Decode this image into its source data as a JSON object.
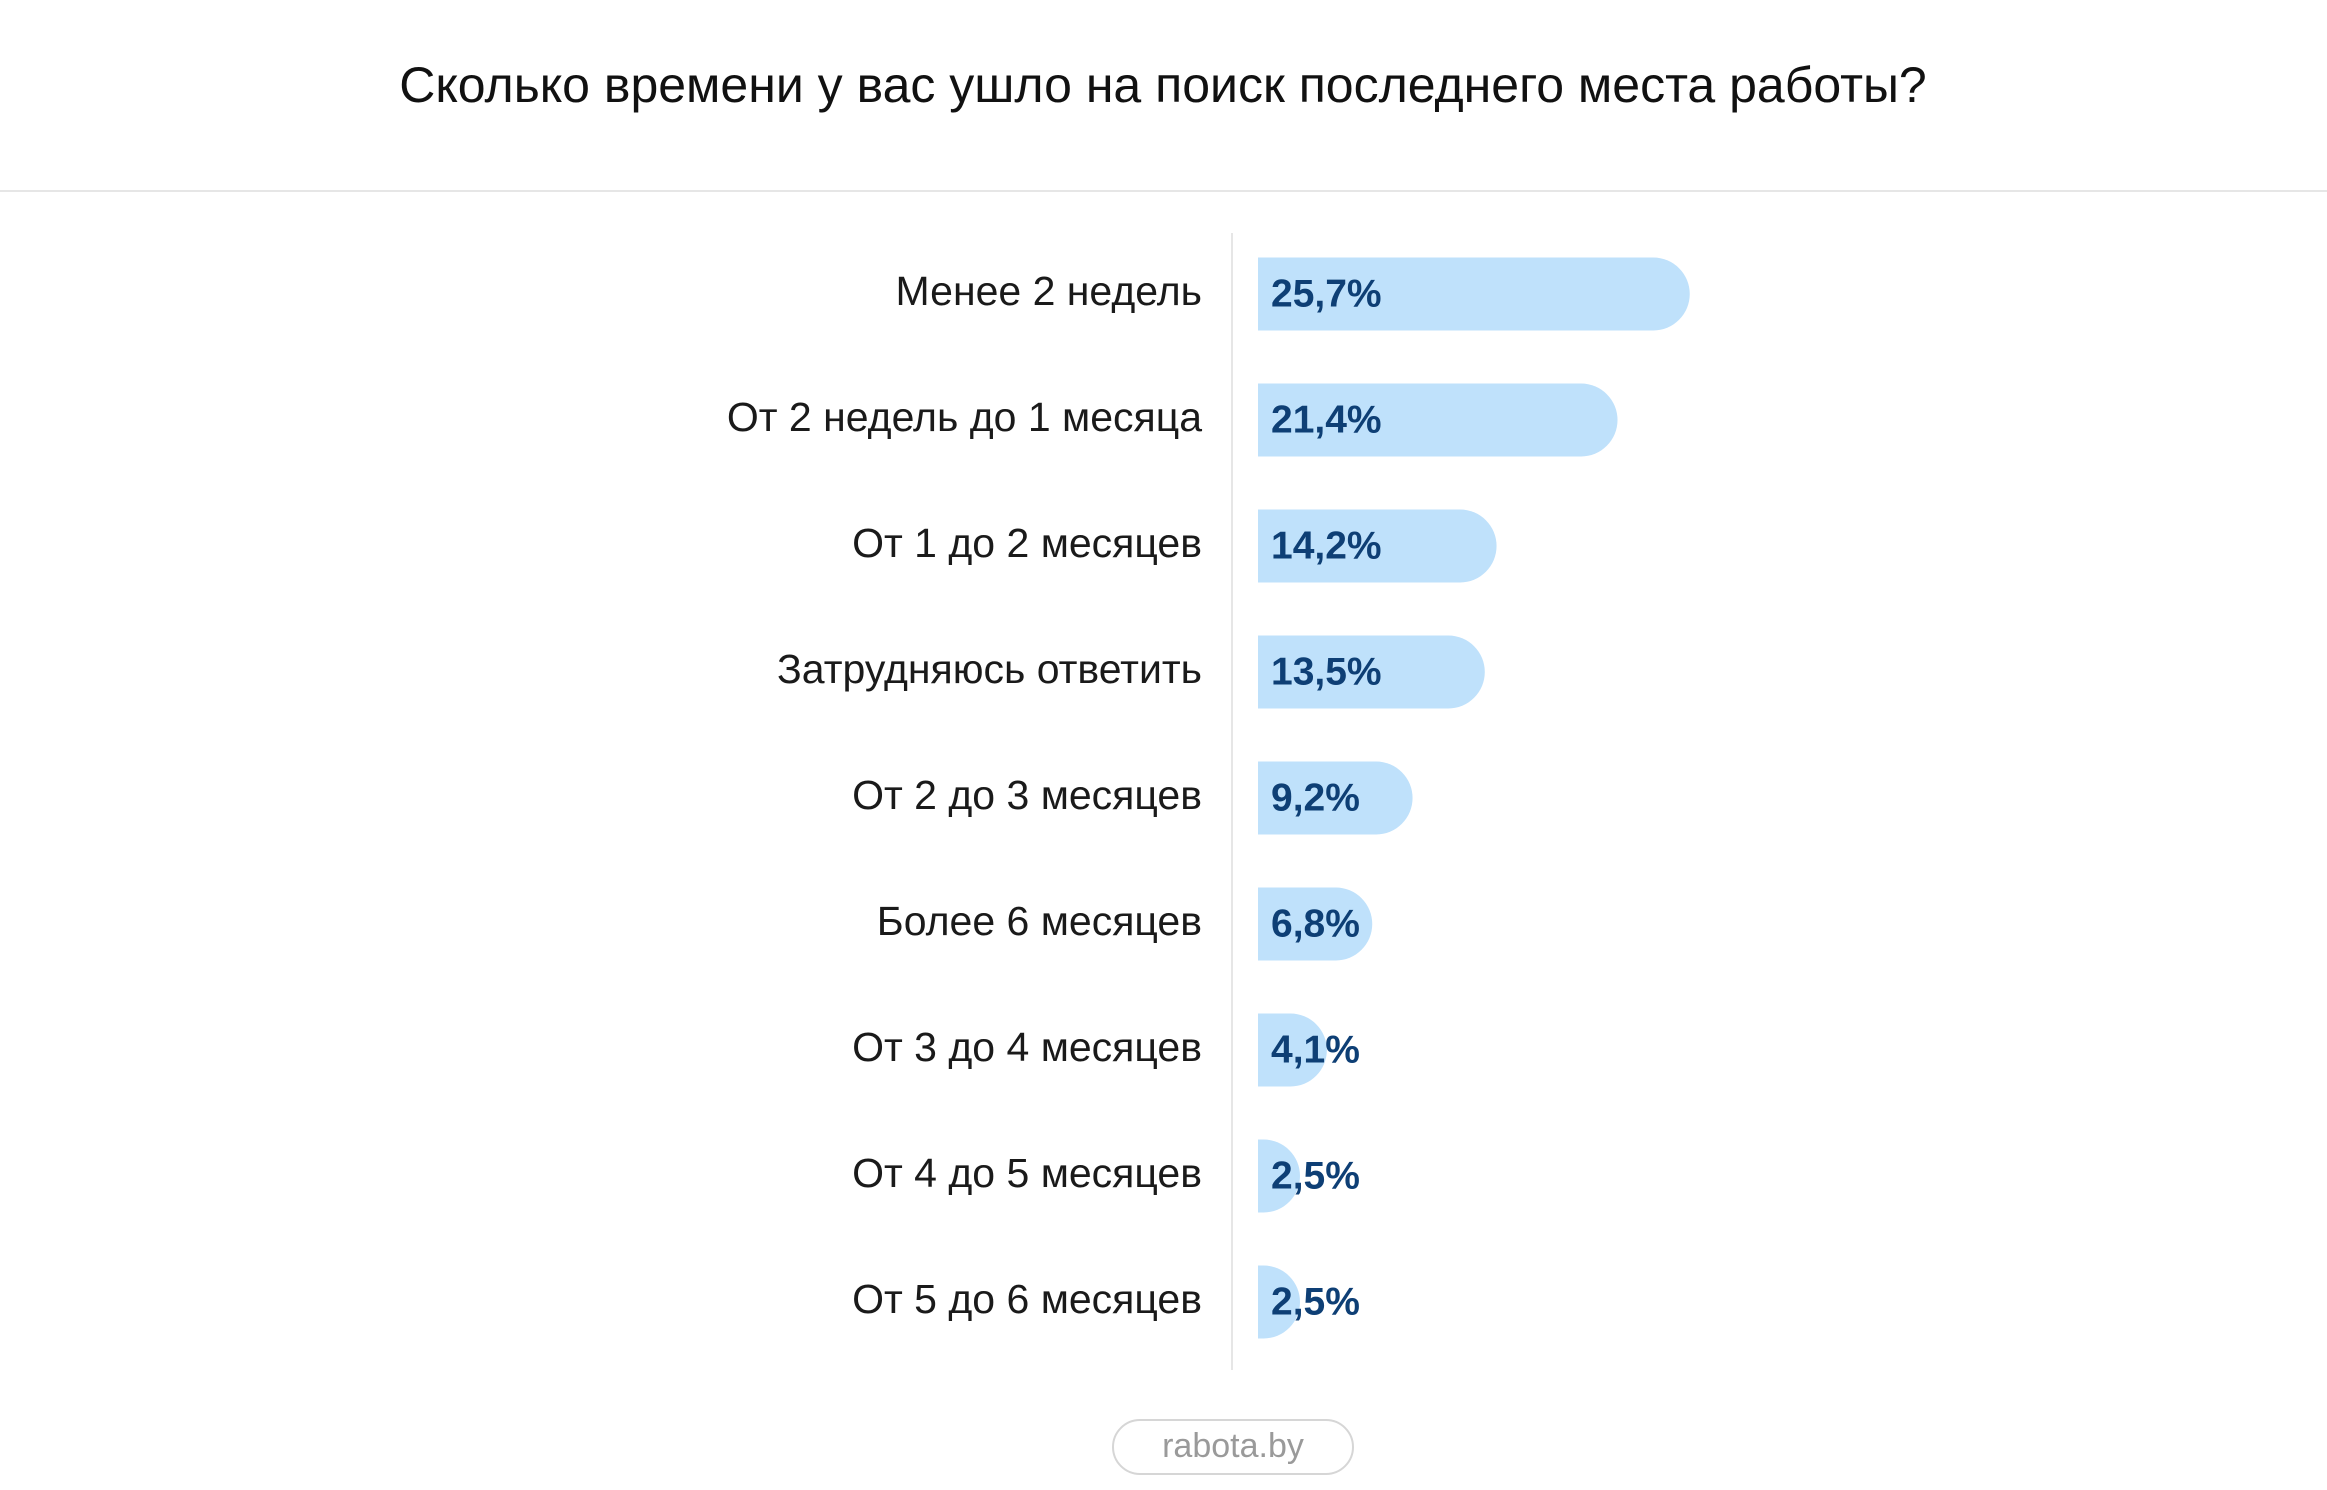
{
  "chart_data": {
    "type": "bar",
    "orientation": "horizontal",
    "title": "Сколько времени у вас ушло на поиск последнего места работы?",
    "categories": [
      "Менее 2 недель",
      "От 2 недель до 1  месяца",
      "От 1 до 2 месяцев",
      "Затрудняюсь ответить",
      "От 2 до 3 месяцев",
      "Более 6 месяцев",
      "От 3 до 4 месяцев",
      "От 4 до 5 месяцев",
      "От 5 до 6 месяцев"
    ],
    "values": [
      25.7,
      21.4,
      14.2,
      13.5,
      9.2,
      6.8,
      4.1,
      2.5,
      2.5
    ],
    "value_labels": [
      "25,7%",
      "21,4%",
      "14,2%",
      "13,5%",
      "9,2%",
      "6,8%",
      "4,1%",
      "2,5%",
      "2,5%"
    ],
    "color": "#bfe1fb"
  },
  "footer": "rabota.by"
}
